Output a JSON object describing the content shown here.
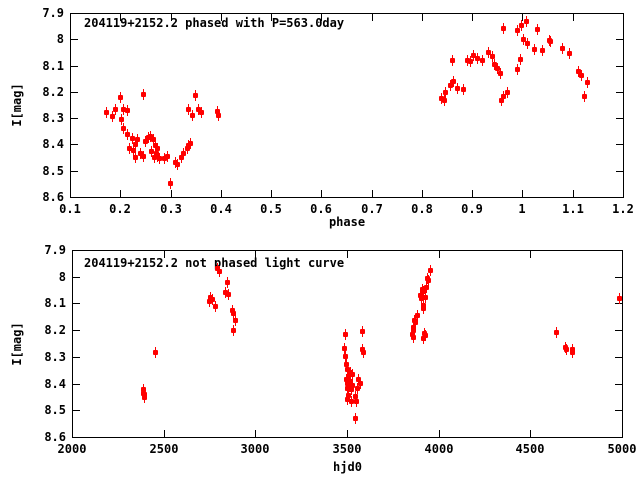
{
  "page": {
    "background": "#ffffff"
  },
  "colors": {
    "marker": "#ff0000",
    "axis": "#000000",
    "text": "#000000"
  },
  "chart_data": [
    {
      "type": "scatter",
      "title": "204119+2152.2 phased with P=563.0day",
      "xlabel": "phase",
      "ylabel": "I[mag]",
      "xlim": [
        0.1,
        1.2
      ],
      "ylim_top": 7.9,
      "ylim_bottom": 8.6,
      "y_axis_inverted": true,
      "grid": false,
      "legend": "none",
      "marker": "filled-square-with-errorbar",
      "marker_color": "#ff0000",
      "xtick_values": [
        0.1,
        0.2,
        0.3,
        0.4,
        0.5,
        0.6,
        0.7,
        0.8,
        0.9,
        1.0,
        1.1,
        1.2
      ],
      "xtick_labels": [
        "0.1",
        "0.2",
        "0.3",
        "0.4",
        "0.5",
        "0.6",
        "0.7",
        "0.8",
        "0.9",
        "1",
        "1.1",
        "1.2"
      ],
      "ytick_values": [
        7.9,
        8.0,
        8.1,
        8.2,
        8.3,
        8.4,
        8.5,
        8.6
      ],
      "ytick_labels": [
        "7.9",
        "8",
        "8.1",
        "8.2",
        "8.3",
        "8.4",
        "8.5",
        "8.6"
      ],
      "points": [
        [
          0.172,
          8.275
        ],
        [
          0.183,
          8.291
        ],
        [
          0.19,
          8.267
        ],
        [
          0.199,
          8.22
        ],
        [
          0.205,
          8.266
        ],
        [
          0.213,
          8.269
        ],
        [
          0.201,
          8.303
        ],
        [
          0.206,
          8.336
        ],
        [
          0.214,
          8.361
        ],
        [
          0.223,
          8.375
        ],
        [
          0.218,
          8.413
        ],
        [
          0.226,
          8.422
        ],
        [
          0.229,
          8.4
        ],
        [
          0.229,
          8.448
        ],
        [
          0.233,
          8.381
        ],
        [
          0.239,
          8.433
        ],
        [
          0.246,
          8.445
        ],
        [
          0.246,
          8.207
        ],
        [
          0.249,
          8.387
        ],
        [
          0.256,
          8.372
        ],
        [
          0.259,
          8.368
        ],
        [
          0.262,
          8.426
        ],
        [
          0.266,
          8.381
        ],
        [
          0.267,
          8.448
        ],
        [
          0.269,
          8.404
        ],
        [
          0.272,
          8.433
        ],
        [
          0.274,
          8.413
        ],
        [
          0.274,
          8.443
        ],
        [
          0.277,
          8.452
        ],
        [
          0.286,
          8.452
        ],
        [
          0.292,
          8.445
        ],
        [
          0.299,
          8.548
        ],
        [
          0.309,
          8.465
        ],
        [
          0.312,
          8.474
        ],
        [
          0.321,
          8.448
        ],
        [
          0.325,
          8.433
        ],
        [
          0.332,
          8.413
        ],
        [
          0.334,
          8.404
        ],
        [
          0.339,
          8.394
        ],
        [
          0.335,
          8.265
        ],
        [
          0.343,
          8.288
        ],
        [
          0.349,
          8.211
        ],
        [
          0.355,
          8.267
        ],
        [
          0.361,
          8.278
        ],
        [
          0.392,
          8.271
        ],
        [
          0.395,
          8.288
        ],
        [
          0.837,
          8.222
        ],
        [
          0.843,
          8.23
        ],
        [
          0.846,
          8.2
        ],
        [
          0.856,
          8.175
        ],
        [
          0.859,
          8.078
        ],
        [
          0.862,
          8.158
        ],
        [
          0.869,
          8.184
        ],
        [
          0.881,
          8.191
        ],
        [
          0.889,
          8.078
        ],
        [
          0.896,
          8.084
        ],
        [
          0.902,
          8.059
        ],
        [
          0.91,
          8.071
        ],
        [
          0.919,
          8.078
        ],
        [
          0.932,
          8.05
        ],
        [
          0.939,
          8.065
        ],
        [
          0.943,
          8.093
        ],
        [
          0.949,
          8.11
        ],
        [
          0.955,
          8.129
        ],
        [
          0.957,
          8.23
        ],
        [
          0.962,
          8.217
        ],
        [
          0.97,
          8.2
        ],
        [
          0.962,
          7.958
        ],
        [
          0.989,
          7.965
        ],
        [
          0.989,
          8.114
        ],
        [
          0.995,
          8.075
        ],
        [
          0.998,
          7.945
        ],
        [
          1.002,
          7.998
        ],
        [
          1.007,
          7.932
        ],
        [
          1.01,
          8.013
        ],
        [
          1.022,
          8.037
        ],
        [
          1.028,
          7.962
        ],
        [
          1.038,
          8.042
        ],
        [
          1.052,
          8.003
        ],
        [
          1.055,
          8.007
        ],
        [
          1.078,
          8.033
        ],
        [
          1.093,
          8.052
        ],
        [
          1.111,
          8.119
        ],
        [
          1.116,
          8.136
        ],
        [
          1.123,
          8.217
        ],
        [
          1.128,
          8.162
        ]
      ]
    },
    {
      "type": "scatter",
      "title": "204119+2152.2 not phased light curve",
      "xlabel": "hjd0",
      "ylabel": "I[mag]",
      "xlim": [
        2000,
        5000
      ],
      "ylim_top": 7.9,
      "ylim_bottom": 8.6,
      "y_axis_inverted": true,
      "grid": false,
      "legend": "none",
      "marker": "filled-square-with-errorbar",
      "marker_color": "#ff0000",
      "xtick_values": [
        2000,
        2500,
        3000,
        3500,
        4000,
        4500,
        5000
      ],
      "xtick_labels": [
        "2000",
        "2500",
        "3000",
        "3500",
        "4000",
        "4500",
        "5000"
      ],
      "ytick_values": [
        7.9,
        8.0,
        8.1,
        8.2,
        8.3,
        8.4,
        8.5,
        8.6
      ],
      "ytick_labels": [
        "7.9",
        "8",
        "8.1",
        "8.2",
        "8.3",
        "8.4",
        "8.5",
        "8.6"
      ],
      "points": [
        [
          2385,
          8.42
        ],
        [
          2388,
          8.435
        ],
        [
          2390,
          8.452
        ],
        [
          2392,
          8.44
        ],
        [
          2453,
          8.283
        ],
        [
          2747,
          8.092
        ],
        [
          2753,
          8.076
        ],
        [
          2762,
          8.085
        ],
        [
          2780,
          8.11
        ],
        [
          2791,
          7.967
        ],
        [
          2800,
          7.98
        ],
        [
          2835,
          8.056
        ],
        [
          2844,
          8.021
        ],
        [
          2853,
          8.064
        ],
        [
          2871,
          8.125
        ],
        [
          2876,
          8.135
        ],
        [
          2889,
          8.161
        ],
        [
          2880,
          8.198
        ],
        [
          3484,
          8.268
        ],
        [
          3489,
          8.216
        ],
        [
          3489,
          8.295
        ],
        [
          3495,
          8.326
        ],
        [
          3495,
          8.384
        ],
        [
          3498,
          8.417
        ],
        [
          3498,
          8.457
        ],
        [
          3502,
          8.344
        ],
        [
          3502,
          8.398
        ],
        [
          3507,
          8.374
        ],
        [
          3507,
          8.441
        ],
        [
          3513,
          8.41
        ],
        [
          3516,
          8.356
        ],
        [
          3516,
          8.392
        ],
        [
          3520,
          8.422
        ],
        [
          3520,
          8.466
        ],
        [
          3525,
          8.364
        ],
        [
          3525,
          8.404
        ],
        [
          3544,
          8.447
        ],
        [
          3544,
          8.53
        ],
        [
          3549,
          8.466
        ],
        [
          3553,
          8.417
        ],
        [
          3562,
          8.384
        ],
        [
          3571,
          8.398
        ],
        [
          3580,
          8.202
        ],
        [
          3580,
          8.271
        ],
        [
          3586,
          8.28
        ],
        [
          3853,
          8.216
        ],
        [
          3858,
          8.188
        ],
        [
          3858,
          8.224
        ],
        [
          3861,
          8.198
        ],
        [
          3865,
          8.161
        ],
        [
          3870,
          8.171
        ],
        [
          3880,
          8.143
        ],
        [
          3898,
          8.07
        ],
        [
          3902,
          8.08
        ],
        [
          3907,
          8.046
        ],
        [
          3913,
          8.054
        ],
        [
          3913,
          8.107
        ],
        [
          3916,
          8.117
        ],
        [
          3916,
          8.228
        ],
        [
          3920,
          8.21
        ],
        [
          3925,
          8.076
        ],
        [
          3925,
          8.22
        ],
        [
          3931,
          8.04
        ],
        [
          3938,
          8.003
        ],
        [
          3944,
          8.013
        ],
        [
          3953,
          7.973
        ],
        [
          4640,
          8.207
        ],
        [
          4689,
          8.262
        ],
        [
          4695,
          8.271
        ],
        [
          4725,
          8.271
        ],
        [
          4729,
          8.28
        ],
        [
          4983,
          8.08
        ]
      ]
    }
  ]
}
